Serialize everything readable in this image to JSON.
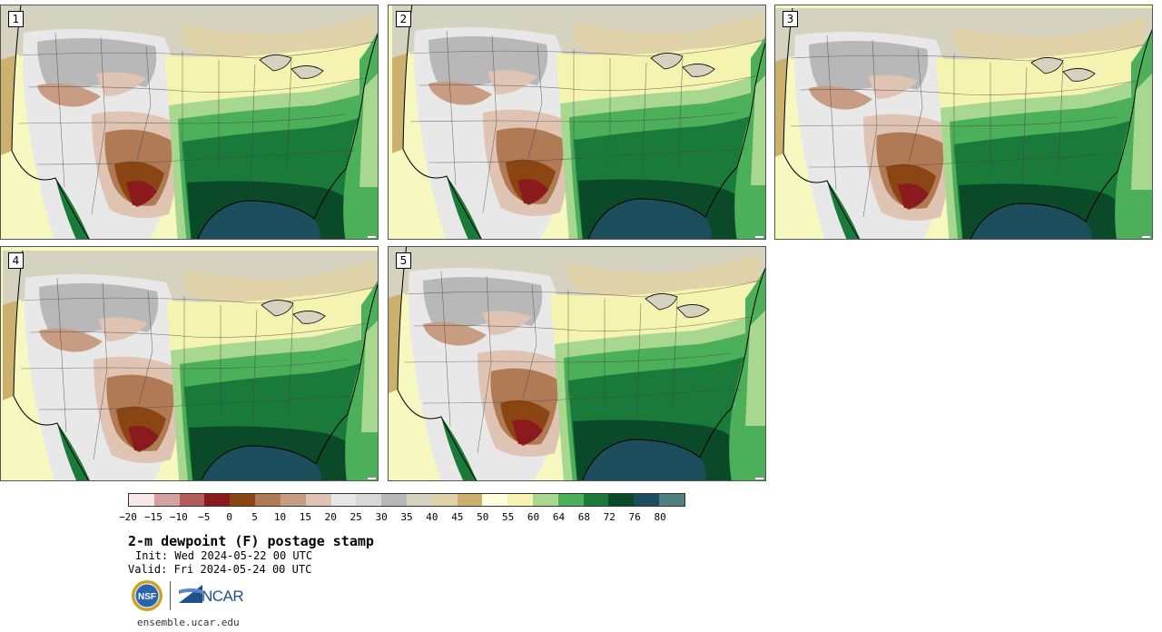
{
  "panels": [
    {
      "label": "1"
    },
    {
      "label": "2"
    },
    {
      "label": "3"
    },
    {
      "label": "4"
    },
    {
      "label": "5"
    }
  ],
  "colorbar": {
    "colors": [
      "#f4e8e8",
      "#d4a0a0",
      "#b25c5c",
      "#8b1a1f",
      "#8b4513",
      "#b07a55",
      "#c79c82",
      "#dfc3b3",
      "#e8e8e8",
      "#d8d8d8",
      "#b8b8b8",
      "#d6d2c0",
      "#e0d2a8",
      "#ccb06e",
      "#ffffe0",
      "#f4f4b0",
      "#a8d890",
      "#4caf5a",
      "#1a7a3a",
      "#0b4a28",
      "#1d4e5e",
      "#4f7f80"
    ],
    "tick_labels": [
      "-20",
      "-15",
      "-10",
      "-5",
      "0",
      "5",
      "10",
      "15",
      "20",
      "25",
      "30",
      "35",
      "40",
      "45",
      "50",
      "55",
      "60",
      "64",
      "68",
      "72",
      "76",
      "80"
    ]
  },
  "title": "2-m dewpoint (F) postage stamp",
  "init": "Init: Wed 2024-05-22 00 UTC",
  "valid": "Valid: Fri 2024-05-24 00 UTC",
  "logos": {
    "nsf": "NSF",
    "ncar": "NCAR"
  },
  "site": "ensemble.ucar.edu"
}
